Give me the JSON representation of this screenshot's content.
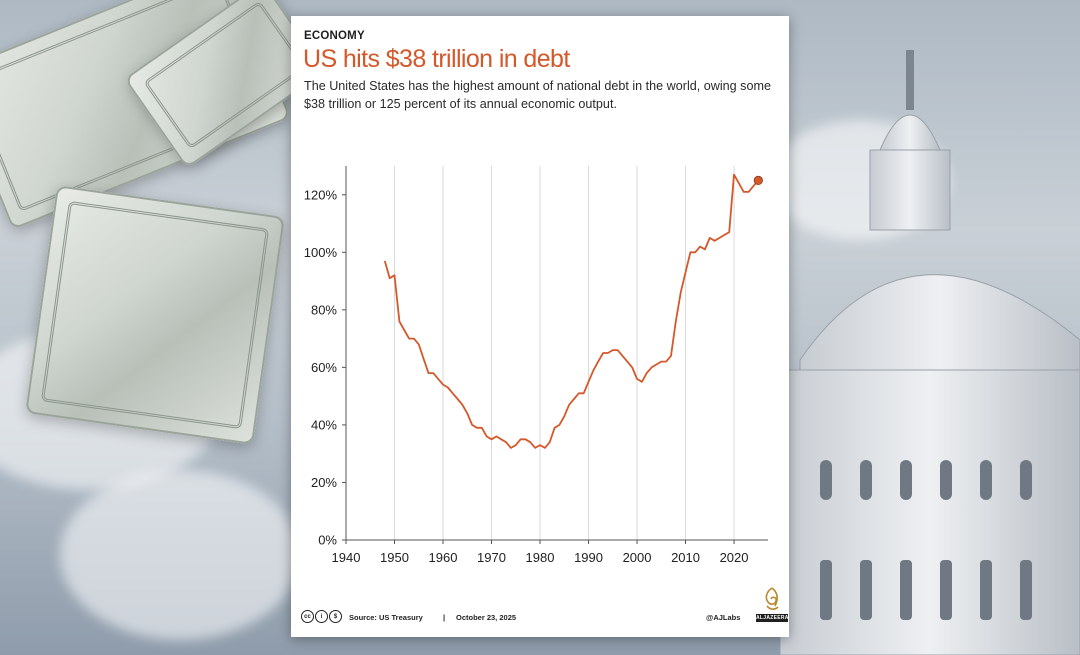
{
  "header": {
    "kicker": "ECONOMY",
    "title": "US hits $38 trillion in debt",
    "subtitle": "The United States has the highest amount of national debt in the world, owing some $38 trillion or 125 percent of its annual economic output."
  },
  "footer": {
    "source": "Source: US Treasury",
    "separator": "|",
    "date": "October 23, 2025",
    "handle": "@AJLabs",
    "brand": "ALJAZEERA"
  },
  "colors": {
    "title": "#d4582a",
    "line": "#d4582a",
    "grid": "#d9d9d9"
  },
  "chart_data": {
    "type": "line",
    "title": "",
    "xlabel": "",
    "ylabel": "",
    "xlim": [
      1940,
      2027
    ],
    "ylim": [
      0,
      130
    ],
    "x_ticks": [
      1940,
      1950,
      1960,
      1970,
      1980,
      1990,
      2000,
      2010,
      2020
    ],
    "y_ticks": [
      0,
      20,
      40,
      60,
      80,
      100,
      120
    ],
    "y_tick_suffix": "%",
    "grid": "vertical",
    "end_marker": true,
    "series": [
      {
        "name": "",
        "x": [
          1948,
          1949,
          1950,
          1951,
          1952,
          1953,
          1954,
          1955,
          1956,
          1957,
          1958,
          1959,
          1960,
          1961,
          1962,
          1963,
          1964,
          1965,
          1966,
          1967,
          1968,
          1969,
          1970,
          1971,
          1972,
          1973,
          1974,
          1975,
          1976,
          1977,
          1978,
          1979,
          1980,
          1981,
          1982,
          1983,
          1984,
          1985,
          1986,
          1987,
          1988,
          1989,
          1990,
          1991,
          1992,
          1993,
          1994,
          1995,
          1996,
          1997,
          1998,
          1999,
          2000,
          2001,
          2002,
          2003,
          2004,
          2005,
          2006,
          2007,
          2008,
          2009,
          2010,
          2011,
          2012,
          2013,
          2014,
          2015,
          2016,
          2017,
          2018,
          2019,
          2020,
          2021,
          2022,
          2023,
          2024,
          2025
        ],
        "values": [
          97,
          91,
          92,
          76,
          73,
          70,
          70,
          68,
          63,
          58,
          58,
          56,
          54,
          53,
          51,
          49,
          47,
          44,
          40,
          39,
          39,
          36,
          35,
          36,
          35,
          34,
          32,
          33,
          35,
          35,
          34,
          32,
          33,
          32,
          34,
          39,
          40,
          43,
          47,
          49,
          51,
          51,
          55,
          59,
          62,
          65,
          65,
          66,
          66,
          64,
          62,
          60,
          56,
          55,
          58,
          60,
          61,
          62,
          62,
          64,
          76,
          86,
          93,
          100,
          100,
          102,
          101,
          105,
          104,
          105,
          106,
          107,
          127,
          124,
          121,
          121,
          123,
          125
        ]
      }
    ]
  }
}
